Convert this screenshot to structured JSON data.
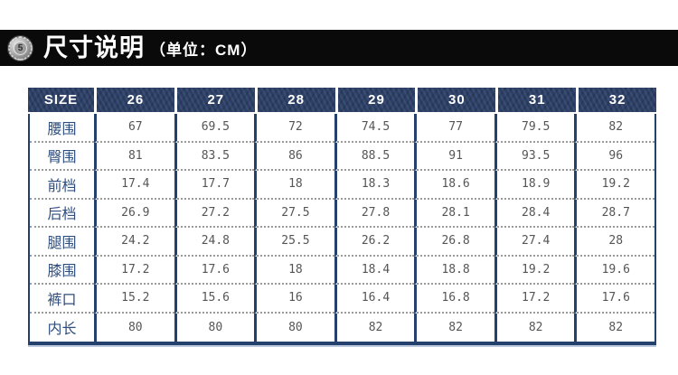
{
  "header": {
    "badge_icon": "coin-5-badge-icon",
    "badge_text": "5",
    "title": "尺寸说明",
    "unit_label": "（单位：CM）"
  },
  "colors": {
    "topbar_bg": "#0a0a0a",
    "header_cell_navy": "#2c4067",
    "table_border_navy": "#24406d",
    "row_label_text": "#2f4e7f",
    "value_text": "#555555",
    "dotted_separator": "#9a9a9a"
  },
  "chart_data": {
    "type": "table",
    "title": "尺寸说明（单位：CM）",
    "unit": "CM",
    "columns": [
      "SIZE",
      "26",
      "27",
      "28",
      "29",
      "30",
      "31",
      "32"
    ],
    "rows": [
      [
        "腰围",
        "67",
        "69.5",
        "72",
        "74.5",
        "77",
        "79.5",
        "82"
      ],
      [
        "臀围",
        "81",
        "83.5",
        "86",
        "88.5",
        "91",
        "93.5",
        "96"
      ],
      [
        "前档",
        "17.4",
        "17.7",
        "18",
        "18.3",
        "18.6",
        "18.9",
        "19.2"
      ],
      [
        "后档",
        "26.9",
        "27.2",
        "27.5",
        "27.8",
        "28.1",
        "28.4",
        "28.7"
      ],
      [
        "腿围",
        "24.2",
        "24.8",
        "25.5",
        "26.2",
        "26.8",
        "27.4",
        "28"
      ],
      [
        "膝围",
        "17.2",
        "17.6",
        "18",
        "18.4",
        "18.8",
        "19.2",
        "19.6"
      ],
      [
        "裤口",
        "15.2",
        "15.6",
        "16",
        "16.4",
        "16.8",
        "17.2",
        "17.6"
      ],
      [
        "内长",
        "80",
        "80",
        "80",
        "82",
        "82",
        "82",
        "82"
      ]
    ]
  }
}
